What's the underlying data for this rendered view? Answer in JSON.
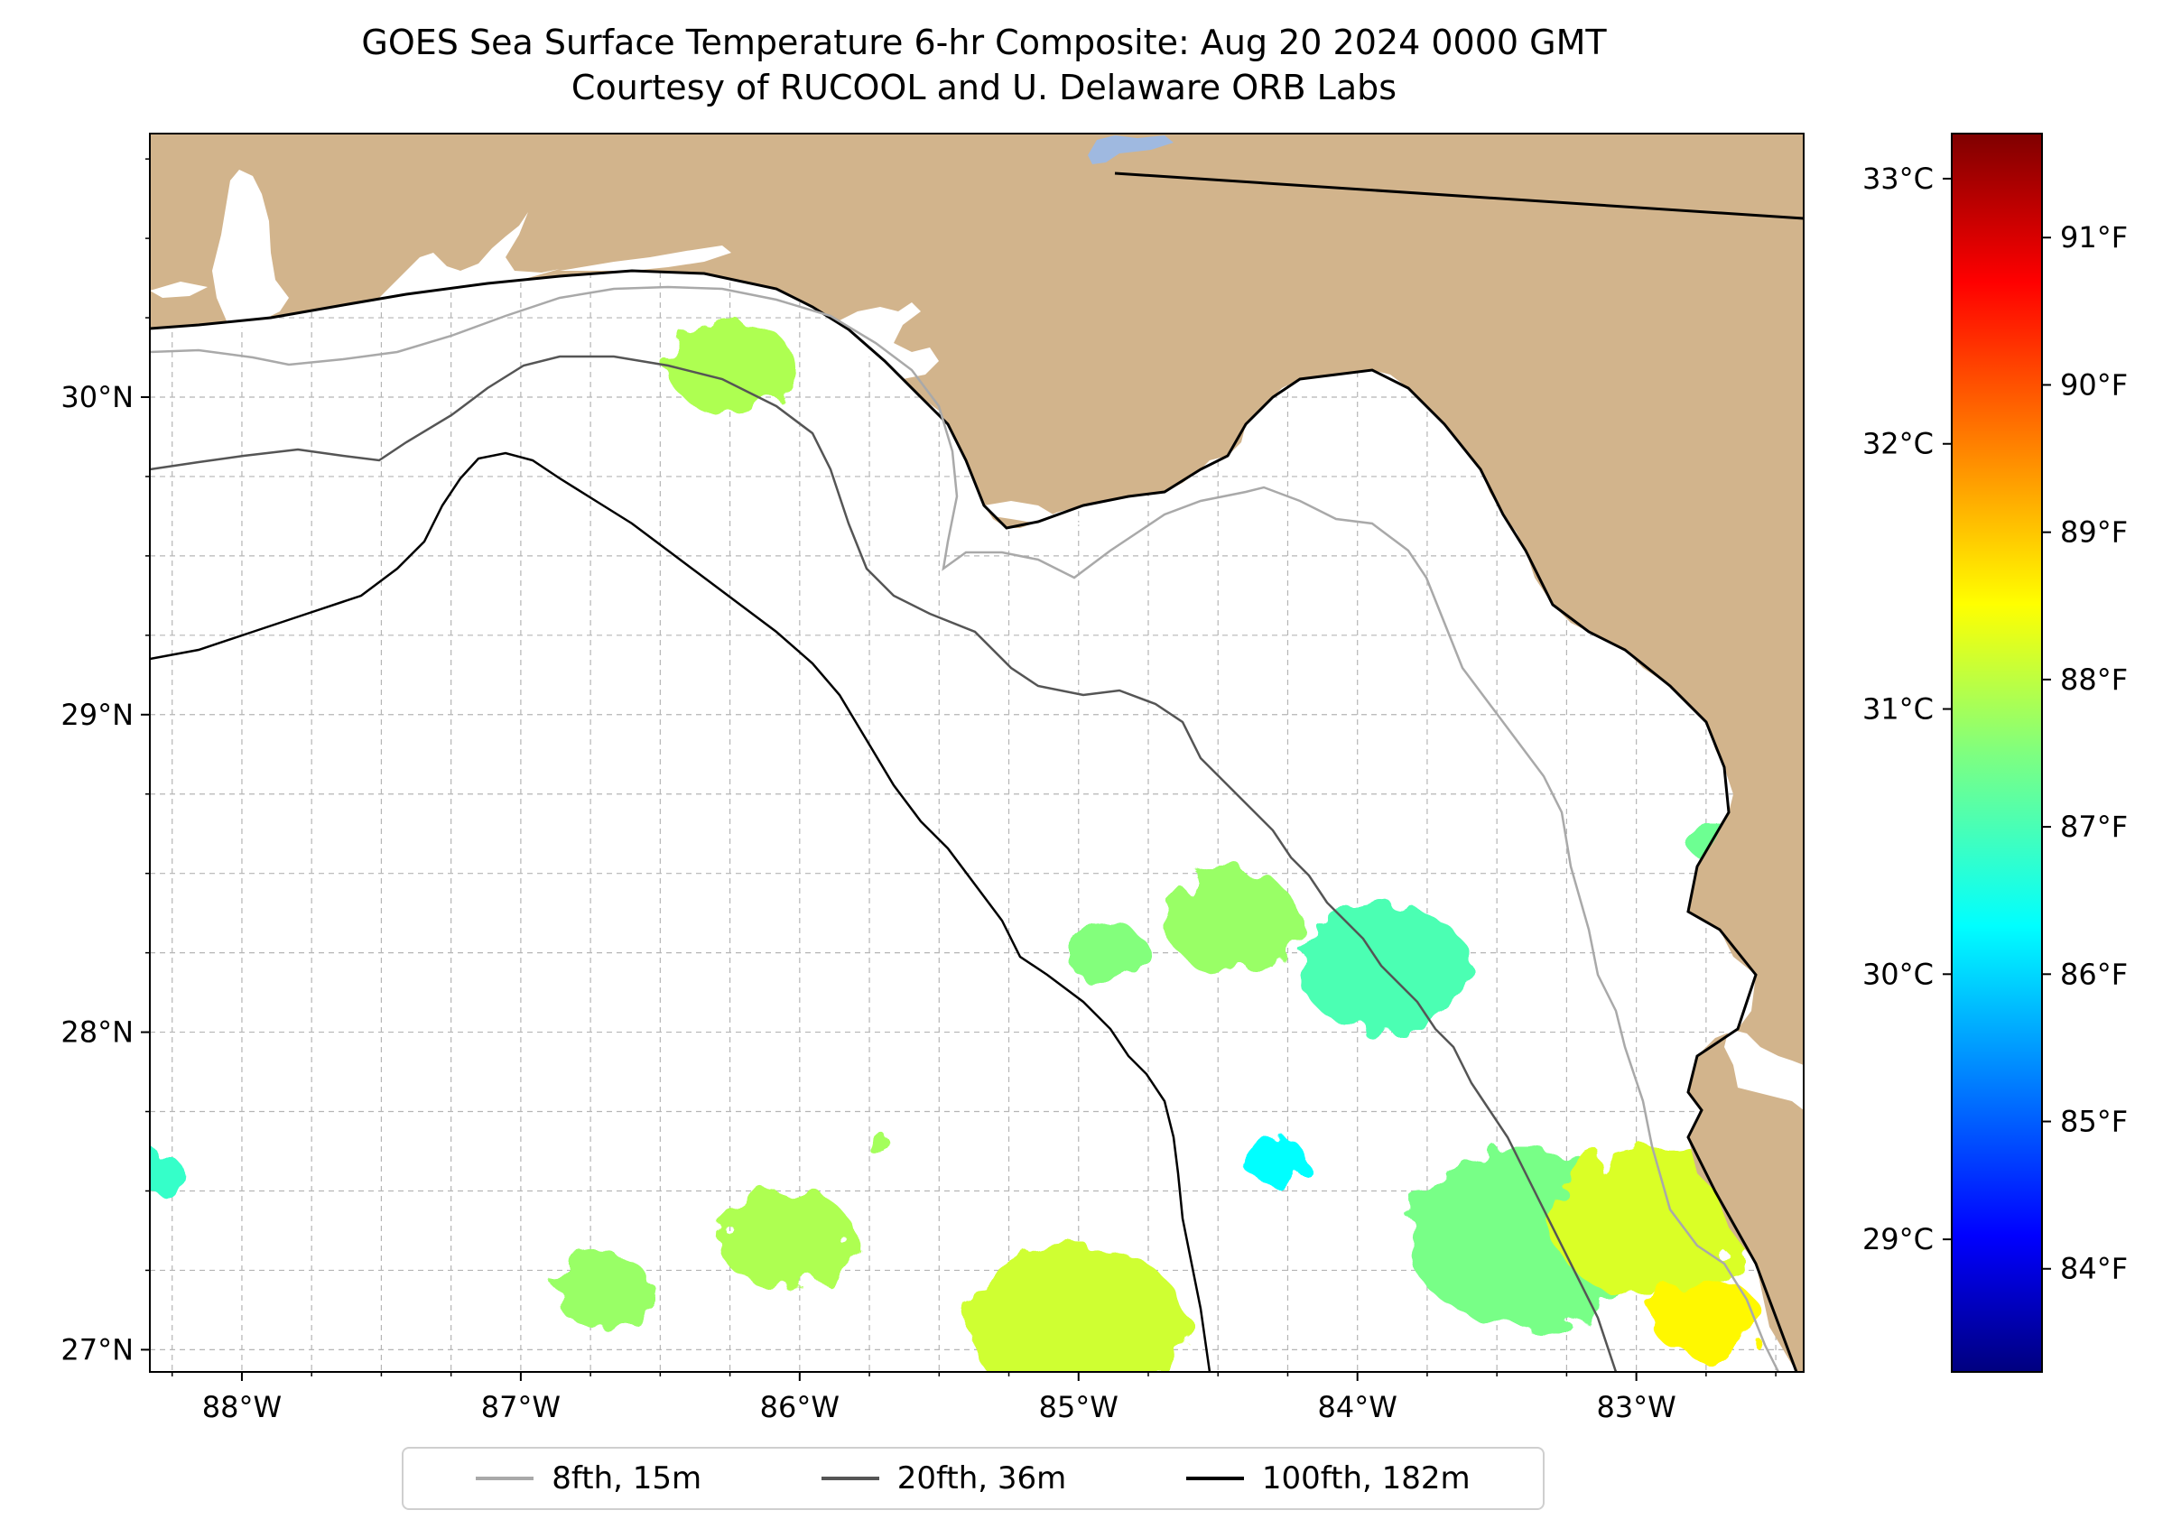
{
  "title": {
    "line1": "GOES Sea Surface Temperature 6-hr Composite: Aug 20 2024 0000 GMT",
    "line2": "Courtesy of RUCOOL and U. Delaware ORB Labs"
  },
  "map": {
    "lon_range": [
      -88.33,
      -82.4
    ],
    "lat_range": [
      26.93,
      30.83
    ],
    "lon_ticks": [
      {
        "value": -88,
        "label": "88°W"
      },
      {
        "value": -87,
        "label": "87°W"
      },
      {
        "value": -86,
        "label": "86°W"
      },
      {
        "value": -85,
        "label": "85°W"
      },
      {
        "value": -84,
        "label": "84°W"
      },
      {
        "value": -83,
        "label": "83°W"
      }
    ],
    "lat_ticks": [
      {
        "value": 30,
        "label": "30°N"
      },
      {
        "value": 29,
        "label": "29°N"
      },
      {
        "value": 28,
        "label": "28°N"
      },
      {
        "value": 27,
        "label": "27°N"
      }
    ],
    "land_color": "#d2b48c",
    "lake_color": "#9fb9e0"
  },
  "colorbar": {
    "colormap": "jet",
    "c_range": [
      28.5,
      33.17
    ],
    "celsius_ticks": [
      {
        "value": 29,
        "label": "29°C"
      },
      {
        "value": 30,
        "label": "30°C"
      },
      {
        "value": 31,
        "label": "31°C"
      },
      {
        "value": 32,
        "label": "32°C"
      },
      {
        "value": 33,
        "label": "33°C"
      }
    ],
    "fahrenheit_ticks": [
      {
        "value": 84,
        "label": "84°F"
      },
      {
        "value": 85,
        "label": "85°F"
      },
      {
        "value": 86,
        "label": "86°F"
      },
      {
        "value": 87,
        "label": "87°F"
      },
      {
        "value": 88,
        "label": "88°F"
      },
      {
        "value": 89,
        "label": "89°F"
      },
      {
        "value": 90,
        "label": "90°F"
      },
      {
        "value": 91,
        "label": "91°F"
      }
    ]
  },
  "legend": [
    {
      "label": "8fth, 15m",
      "color": "#a9a9a9"
    },
    {
      "label": "20fth, 36m",
      "color": "#555555"
    },
    {
      "label": "100fth, 182m",
      "color": "#000000"
    }
  ],
  "sst_patches": [
    {
      "lon": -86.25,
      "lat": 30.1,
      "temp_c": 31.05
    },
    {
      "lon": -84.45,
      "lat": 28.35,
      "temp_c": 30.95
    },
    {
      "lon": -84.9,
      "lat": 28.25,
      "temp_c": 30.85
    },
    {
      "lon": -83.9,
      "lat": 28.2,
      "temp_c": 30.6
    },
    {
      "lon": -84.3,
      "lat": 27.6,
      "temp_c": 30.25
    },
    {
      "lon": -83.4,
      "lat": 27.35,
      "temp_c": 30.8
    },
    {
      "lon": -82.95,
      "lat": 27.4,
      "temp_c": 31.25
    },
    {
      "lon": -82.75,
      "lat": 27.1,
      "temp_c": 31.45
    },
    {
      "lon": -85.0,
      "lat": 27.07,
      "temp_c": 31.2
    },
    {
      "lon": -86.05,
      "lat": 27.35,
      "temp_c": 31.05
    },
    {
      "lon": -86.7,
      "lat": 27.18,
      "temp_c": 30.95
    },
    {
      "lon": -88.3,
      "lat": 27.55,
      "temp_c": 30.5
    },
    {
      "lon": -82.72,
      "lat": 28.6,
      "temp_c": 30.75
    },
    {
      "lon": -85.72,
      "lat": 27.65,
      "temp_c": 31.0
    }
  ]
}
